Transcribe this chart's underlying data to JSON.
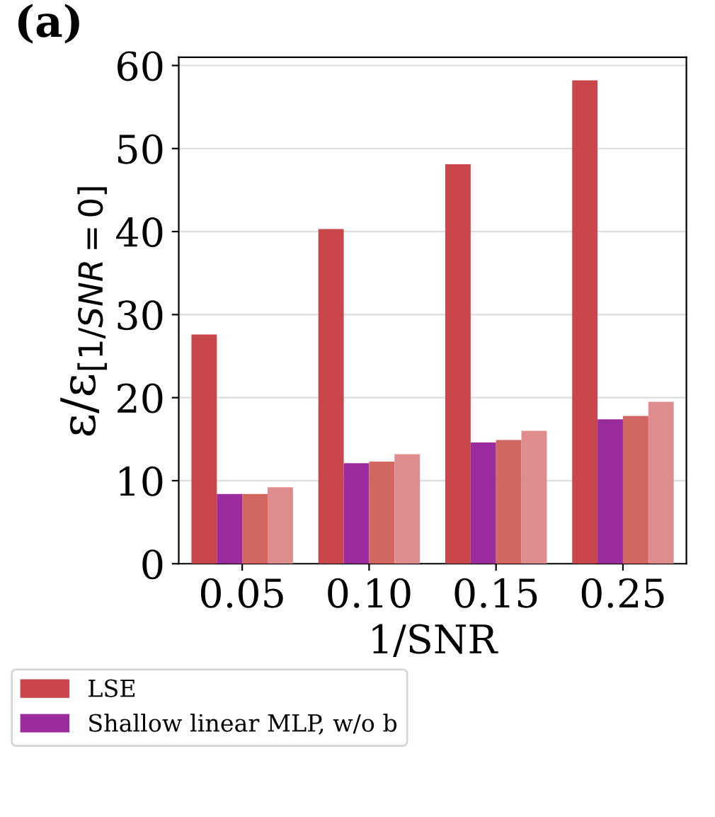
{
  "chart_data": {
    "type": "bar",
    "title": "(a)",
    "xlabel": "1/SNR",
    "ylabel": "ε/ε$_{[1/SNR=0]}$",
    "categories": [
      "0.05",
      "0.10",
      "0.15",
      "0.25"
    ],
    "series": [
      {
        "name": "LSE",
        "color": "#c9474a",
        "values": [
          27.6,
          40.3,
          48.1,
          58.2
        ]
      },
      {
        "name": "Shallow linear MLP, w/o b",
        "color": "#9b2c9e",
        "values": [
          8.4,
          12.1,
          14.6,
          17.4
        ]
      },
      {
        "color": "#d26762",
        "values": [
          8.4,
          12.3,
          14.9,
          17.8
        ]
      },
      {
        "color": "#df8c8c",
        "values": [
          9.2,
          13.2,
          16.0,
          19.5
        ]
      }
    ],
    "ylim": [
      0,
      61
    ],
    "yticks": [
      0,
      10,
      20,
      30,
      40,
      50,
      60
    ],
    "grid": "y",
    "legend": "bottom"
  }
}
